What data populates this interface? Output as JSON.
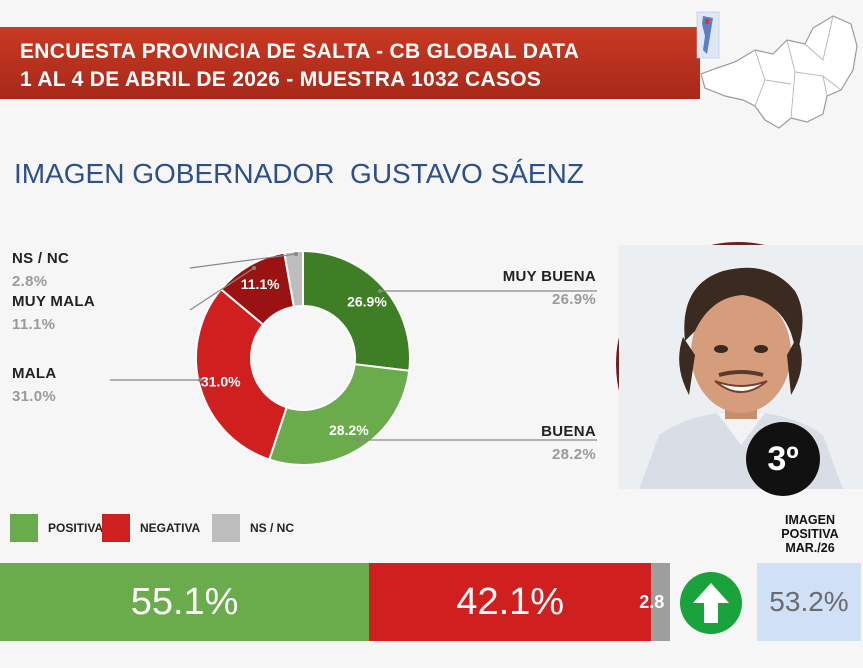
{
  "header": {
    "line1": "ENCUESTA PROVINCIA DE SALTA - CB GLOBAL DATA",
    "line2": "1 AL 4 DE ABRIL DE 2026 - MUESTRA 1032 CASOS"
  },
  "heading": "IMAGEN GOBERNADOR  GUSTAVO SÁENZ",
  "colors": {
    "muy_buena": "#3e7f25",
    "buena": "#6aac4b",
    "mala": "#d01f1f",
    "muy_mala": "#9b1212",
    "nsnc": "#bdbdbd",
    "banner": "#b02e1c",
    "heading": "#2d4f8a",
    "arrow": "#1aa33a",
    "prev_bg": "#cfe0f7"
  },
  "chart_data": [
    {
      "type": "pie",
      "donut": true,
      "slices": [
        {
          "label": "MUY BUENA",
          "value": 26.9,
          "display": "26.9%",
          "color": "#3e7f25"
        },
        {
          "label": "BUENA",
          "value": 28.2,
          "display": "28.2%",
          "color": "#6aac4b"
        },
        {
          "label": "MALA",
          "value": 31.0,
          "display": "31.0%",
          "color": "#d01f1f"
        },
        {
          "label": "MUY MALA",
          "value": 11.1,
          "display": "11.1%",
          "color": "#9b1212"
        },
        {
          "label": "NS / NC",
          "value": 2.8,
          "display": "2.8%",
          "color": "#bdbdbd"
        }
      ]
    },
    {
      "type": "bar",
      "stacked": true,
      "orientation": "horizontal",
      "segments": [
        {
          "label": "POSITIVA",
          "value": 55.1,
          "display": "55.1%",
          "color": "#6aac4b"
        },
        {
          "label": "NEGATIVA",
          "value": 42.1,
          "display": "42.1%",
          "color": "#d01f1f"
        },
        {
          "label": "NS / NC",
          "value": 2.8,
          "display": "2.8",
          "color": "#9e9e9e"
        }
      ]
    }
  ],
  "portrait": {
    "rank": "3º"
  },
  "legend": {
    "positiva": "POSITIVA",
    "negativa": "NEGATIVA",
    "nsnc": "NS / NC"
  },
  "trend_icon": "arrow-up-icon",
  "previous": {
    "label1": "IMAGEN",
    "label2": "POSITIVA",
    "label3": "MAR./26",
    "value": "53.2%"
  }
}
